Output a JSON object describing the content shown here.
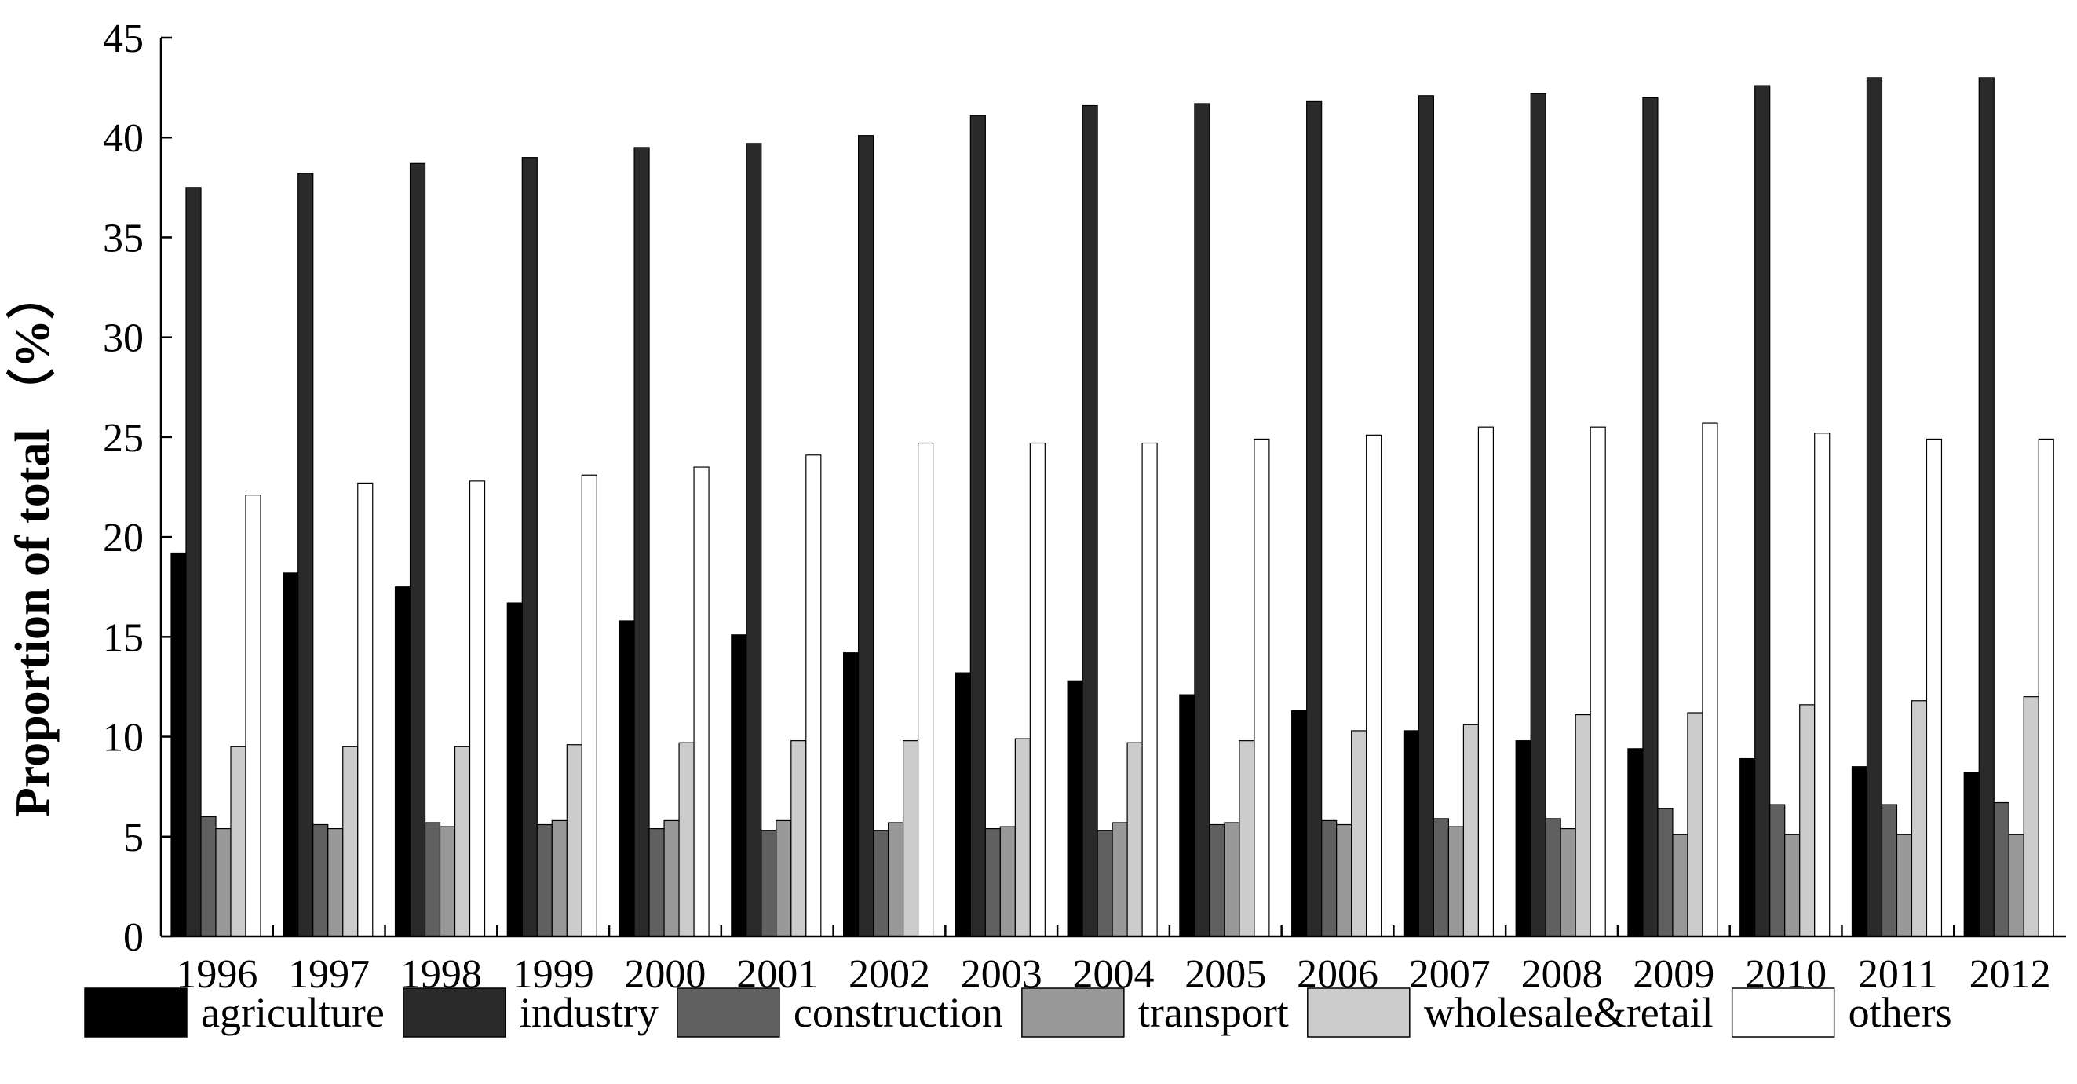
{
  "chart_data": {
    "type": "bar",
    "title": "",
    "xlabel": "",
    "ylabel": "Proportion of total （%）",
    "ylim": [
      0,
      45
    ],
    "yticks": [
      0,
      5,
      10,
      15,
      20,
      25,
      30,
      35,
      40,
      45
    ],
    "grid": false,
    "legend_position": "bottom",
    "categories": [
      "1996",
      "1997",
      "1998",
      "1999",
      "2000",
      "2001",
      "2002",
      "2003",
      "2004",
      "2005",
      "2006",
      "2007",
      "2008",
      "2009",
      "2010",
      "2011",
      "2012"
    ],
    "series": [
      {
        "name": "agriculture",
        "color": "#000000",
        "values": [
          19.2,
          18.2,
          17.5,
          16.7,
          15.8,
          15.1,
          14.2,
          13.2,
          12.8,
          12.1,
          11.3,
          10.3,
          9.8,
          9.4,
          8.9,
          8.5,
          8.2
        ]
      },
      {
        "name": "industry",
        "color": "#2a2a2a",
        "values": [
          37.5,
          38.2,
          38.7,
          39.0,
          39.5,
          39.7,
          40.1,
          41.1,
          41.6,
          41.7,
          41.8,
          42.1,
          42.2,
          42.0,
          42.6,
          43.0,
          43.0
        ]
      },
      {
        "name": "construction",
        "color": "#606060",
        "values": [
          6.0,
          5.6,
          5.7,
          5.6,
          5.4,
          5.3,
          5.3,
          5.4,
          5.3,
          5.6,
          5.8,
          5.9,
          5.9,
          6.4,
          6.6,
          6.6,
          6.7
        ]
      },
      {
        "name": "transport",
        "color": "#999999",
        "values": [
          5.4,
          5.4,
          5.5,
          5.8,
          5.8,
          5.8,
          5.7,
          5.5,
          5.7,
          5.7,
          5.6,
          5.5,
          5.4,
          5.1,
          5.1,
          5.1,
          5.1
        ]
      },
      {
        "name": "wholesale&retail",
        "color": "#cccccc",
        "values": [
          9.5,
          9.5,
          9.5,
          9.6,
          9.7,
          9.8,
          9.8,
          9.9,
          9.7,
          9.8,
          10.3,
          10.6,
          11.1,
          11.2,
          11.6,
          11.8,
          12.0
        ]
      },
      {
        "name": "others",
        "color": "#ffffff",
        "values": [
          22.1,
          22.7,
          22.8,
          23.1,
          23.5,
          24.1,
          24.7,
          24.7,
          24.7,
          24.9,
          25.1,
          25.5,
          25.5,
          25.7,
          25.2,
          24.9,
          24.9
        ]
      }
    ]
  }
}
